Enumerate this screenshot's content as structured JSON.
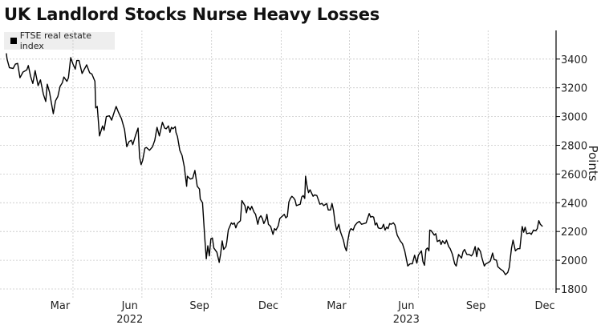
{
  "chart_data": {
    "type": "line",
    "title": "UK Landlord Stocks Nurse Heavy Losses",
    "ylabel": "Points",
    "xlabel": "",
    "ylim": [
      1750,
      3600
    ],
    "y_ticks": [
      1800,
      2000,
      2200,
      2400,
      2600,
      2800,
      3000,
      3200,
      3400
    ],
    "x_tick_labels": [
      {
        "label": "Mar",
        "date": "2022-03-15"
      },
      {
        "label": "Jun",
        "date": "2022-06-15"
      },
      {
        "label": "Sep",
        "date": "2022-09-15"
      },
      {
        "label": "Dec",
        "date": "2022-12-15"
      },
      {
        "label": "Mar",
        "date": "2023-03-15"
      },
      {
        "label": "Jun",
        "date": "2023-06-15"
      },
      {
        "label": "Sep",
        "date": "2023-09-15"
      },
      {
        "label": "Dec",
        "date": "2023-12-15"
      }
    ],
    "year_labels": [
      {
        "label": "2022",
        "date": "2022-06-15"
      },
      {
        "label": "2023",
        "date": "2023-06-15"
      }
    ],
    "grid": true,
    "legend_position": "top-left",
    "color": "#000000",
    "series": [
      {
        "name": "FTSE real estate index",
        "x": [
          "2022-01-03",
          "2022-01-04",
          "2022-01-07",
          "2022-01-12",
          "2022-01-15",
          "2022-01-18",
          "2022-01-21",
          "2022-01-25",
          "2022-01-30",
          "2022-02-01",
          "2022-02-04",
          "2022-02-07",
          "2022-02-10",
          "2022-02-14",
          "2022-02-17",
          "2022-02-21",
          "2022-02-24",
          "2022-02-26",
          "2022-03-01",
          "2022-03-06",
          "2022-03-09",
          "2022-03-12",
          "2022-03-15",
          "2022-03-18",
          "2022-03-20",
          "2022-03-24",
          "2022-03-26",
          "2022-03-29",
          "2022-04-01",
          "2022-04-04",
          "2022-04-06",
          "2022-04-09",
          "2022-04-13",
          "2022-04-16",
          "2022-04-19",
          "2022-04-23",
          "2022-04-26",
          "2022-04-30",
          "2022-05-01",
          "2022-05-03",
          "2022-05-06",
          "2022-05-10",
          "2022-05-12",
          "2022-05-15",
          "2022-05-19",
          "2022-05-22",
          "2022-05-26",
          "2022-05-28",
          "2022-05-31",
          "2022-06-04",
          "2022-06-08",
          "2022-06-11",
          "2022-06-14",
          "2022-06-17",
          "2022-06-19",
          "2022-06-23",
          "2022-06-26",
          "2022-06-28",
          "2022-06-30",
          "2022-07-02",
          "2022-07-05",
          "2022-07-07",
          "2022-07-11",
          "2022-07-15",
          "2022-07-18",
          "2022-07-21",
          "2022-07-24",
          "2022-07-28",
          "2022-07-31",
          "2022-08-02",
          "2022-08-05",
          "2022-08-07",
          "2022-08-09",
          "2022-08-11",
          "2022-08-14",
          "2022-08-15",
          "2022-08-17",
          "2022-08-20",
          "2022-08-23",
          "2022-08-26",
          "2022-08-29",
          "2022-08-30",
          "2022-09-03",
          "2022-09-06",
          "2022-09-09",
          "2022-09-12",
          "2022-09-15",
          "2022-09-16",
          "2022-09-19",
          "2022-09-22",
          "2022-09-24",
          "2022-09-26",
          "2022-09-28",
          "2022-09-30",
          "2022-10-02",
          "2022-10-04",
          "2022-10-08",
          "2022-10-11",
          "2022-10-13",
          "2022-10-15",
          "2022-10-17",
          "2022-10-20",
          "2022-10-21",
          "2022-10-23",
          "2022-10-27",
          "2022-10-29",
          "2022-10-31",
          "2022-11-02",
          "2022-11-04",
          "2022-11-08",
          "2022-11-10",
          "2022-11-14",
          "2022-11-16",
          "2022-11-18",
          "2022-11-21",
          "2022-11-23",
          "2022-11-26",
          "2022-11-28",
          "2022-12-01",
          "2022-12-03",
          "2022-12-05",
          "2022-12-07",
          "2022-12-09",
          "2022-12-12",
          "2022-12-13",
          "2022-12-15",
          "2022-12-18",
          "2022-12-21",
          "2022-12-23",
          "2022-12-25",
          "2022-12-28",
          "2022-12-30",
          "2023-01-02",
          "2023-01-05",
          "2023-01-07",
          "2023-01-09",
          "2023-01-11",
          "2023-01-13",
          "2023-01-15",
          "2023-01-17",
          "2023-01-19",
          "2023-01-21",
          "2023-01-26",
          "2023-01-28",
          "2023-01-30",
          "2023-02-01",
          "2023-02-02",
          "2023-02-04",
          "2023-02-06",
          "2023-02-08",
          "2023-02-12",
          "2023-02-14",
          "2023-02-17",
          "2023-02-19",
          "2023-02-21",
          "2023-02-24",
          "2023-02-26",
          "2023-03-02",
          "2023-03-04",
          "2023-03-07",
          "2023-03-09",
          "2023-03-11",
          "2023-03-13",
          "2023-03-15",
          "2023-03-18",
          "2023-03-20",
          "2023-03-22",
          "2023-03-24",
          "2023-03-26",
          "2023-03-28",
          "2023-03-30",
          "2023-04-01",
          "2023-04-03",
          "2023-04-06",
          "2023-04-08",
          "2023-04-11",
          "2023-04-14",
          "2023-04-17",
          "2023-04-20",
          "2023-04-23",
          "2023-04-27",
          "2023-04-29",
          "2023-05-01",
          "2023-05-03",
          "2023-05-05",
          "2023-05-07",
          "2023-05-09",
          "2023-05-12",
          "2023-05-14",
          "2023-05-16",
          "2023-05-18",
          "2023-05-20",
          "2023-05-22",
          "2023-05-24",
          "2023-05-26",
          "2023-05-29",
          "2023-05-31",
          "2023-06-03",
          "2023-06-07",
          "2023-06-10",
          "2023-06-13",
          "2023-06-17",
          "2023-06-20",
          "2023-06-23",
          "2023-06-26",
          "2023-06-29",
          "2023-07-01",
          "2023-07-05",
          "2023-07-07",
          "2023-07-09",
          "2023-07-11",
          "2023-07-13",
          "2023-07-15",
          "2023-07-16",
          "2023-07-18",
          "2023-07-22",
          "2023-07-24",
          "2023-07-26",
          "2023-07-29",
          "2023-07-31",
          "2023-08-02",
          "2023-08-05",
          "2023-08-07",
          "2023-08-10",
          "2023-08-12",
          "2023-08-15",
          "2023-08-18",
          "2023-08-20",
          "2023-08-23",
          "2023-08-27",
          "2023-08-29",
          "2023-08-31",
          "2023-09-03",
          "2023-09-06",
          "2023-09-09",
          "2023-09-11",
          "2023-09-14",
          "2023-09-16",
          "2023-09-18",
          "2023-09-21",
          "2023-09-23",
          "2023-09-26",
          "2023-09-28",
          "2023-10-02",
          "2023-10-04",
          "2023-10-07",
          "2023-10-09",
          "2023-10-12",
          "2023-10-14",
          "2023-10-17",
          "2023-10-21",
          "2023-10-24",
          "2023-10-27",
          "2023-10-29",
          "2023-11-01",
          "2023-11-03",
          "2023-11-06",
          "2023-11-09",
          "2023-11-12",
          "2023-11-15",
          "2023-11-17",
          "2023-11-19",
          "2023-11-21",
          "2023-11-25",
          "2023-11-27",
          "2023-11-30",
          "2023-12-03",
          "2023-12-05",
          "2023-12-07",
          "2023-12-09",
          "2023-12-12"
        ],
        "y": [
          3440,
          3400,
          3340,
          3335,
          3365,
          3370,
          3270,
          3310,
          3325,
          3355,
          3280,
          3230,
          3320,
          3215,
          3255,
          3155,
          3105,
          3225,
          3170,
          3020,
          3110,
          3140,
          3210,
          3235,
          3275,
          3245,
          3270,
          3410,
          3365,
          3330,
          3390,
          3390,
          3300,
          3330,
          3360,
          3305,
          3295,
          3245,
          3060,
          3070,
          2865,
          2935,
          2905,
          3000,
          3005,
          2975,
          3040,
          3070,
          3030,
          2985,
          2910,
          2790,
          2825,
          2835,
          2805,
          2875,
          2920,
          2715,
          2665,
          2695,
          2780,
          2785,
          2765,
          2790,
          2835,
          2925,
          2865,
          2960,
          2920,
          2915,
          2935,
          2890,
          2925,
          2915,
          2930,
          2890,
          2860,
          2765,
          2730,
          2650,
          2515,
          2585,
          2565,
          2570,
          2625,
          2515,
          2495,
          2425,
          2400,
          2155,
          2010,
          2100,
          2030,
          2150,
          2155,
          2085,
          2055,
          1985,
          2045,
          2135,
          2075,
          2095,
          2125,
          2210,
          2260,
          2250,
          2260,
          2225,
          2255,
          2275,
          2415,
          2380,
          2330,
          2375,
          2350,
          2375,
          2335,
          2320,
          2250,
          2295,
          2310,
          2290,
          2255,
          2290,
          2320,
          2250,
          2235,
          2180,
          2220,
          2210,
          2240,
          2290,
          2305,
          2320,
          2295,
          2305,
          2405,
          2430,
          2445,
          2435,
          2420,
          2380,
          2390,
          2440,
          2450,
          2430,
          2585,
          2515,
          2470,
          2490,
          2445,
          2455,
          2450,
          2420,
          2390,
          2395,
          2380,
          2395,
          2350,
          2350,
          2395,
          2345,
          2260,
          2210,
          2250,
          2200,
          2170,
          2140,
          2090,
          2065,
          2140,
          2200,
          2220,
          2210,
          2240,
          2260,
          2270,
          2250,
          2255,
          2260,
          2325,
          2300,
          2305,
          2300,
          2245,
          2260,
          2225,
          2220,
          2225,
          2250,
          2210,
          2230,
          2220,
          2255,
          2250,
          2260,
          2245,
          2175,
          2135,
          2115,
          2065,
          1960,
          1975,
          1975,
          2035,
          1980,
          2035,
          2065,
          1990,
          1965,
          2075,
          2085,
          2065,
          2210,
          2205,
          2175,
          2185,
          2130,
          2140,
          2110,
          2135,
          2115,
          2140,
          2095,
          2080,
          2040,
          1975,
          1960,
          2040,
          2015,
          2060,
          2075,
          2040,
          2040,
          2030,
          2045,
          2095,
          2025,
          2085,
          2060,
          2015,
          1960,
          1975,
          1985,
          1995,
          2050,
          2005,
          2000,
          1955,
          1940,
          1925,
          1900,
          1915,
          1950,
          2085,
          2140,
          2065,
          2080,
          2080,
          2235,
          2195,
          2230,
          2185,
          2190,
          2180,
          2210,
          2205,
          2220,
          2275,
          2250,
          2235
        ]
      }
    ]
  }
}
